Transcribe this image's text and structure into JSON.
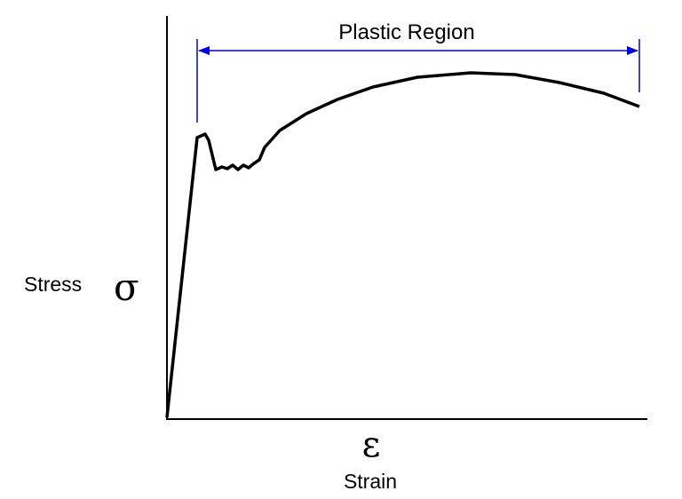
{
  "annotation": "Plastic Region",
  "y_axis": {
    "label": "Stress",
    "symbol": "σ"
  },
  "x_axis": {
    "symbol": "ε",
    "label": "Strain"
  }
}
